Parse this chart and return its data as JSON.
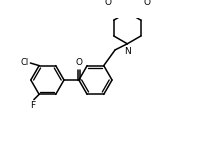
{
  "background": "#ffffff",
  "bond_color": "black",
  "lw": 1.1,
  "lw_inner": 0.95,
  "figsize": [
    1.97,
    1.42
  ],
  "dpi": 100,
  "xlim": [
    0,
    197
  ],
  "ylim": [
    0,
    142
  ]
}
